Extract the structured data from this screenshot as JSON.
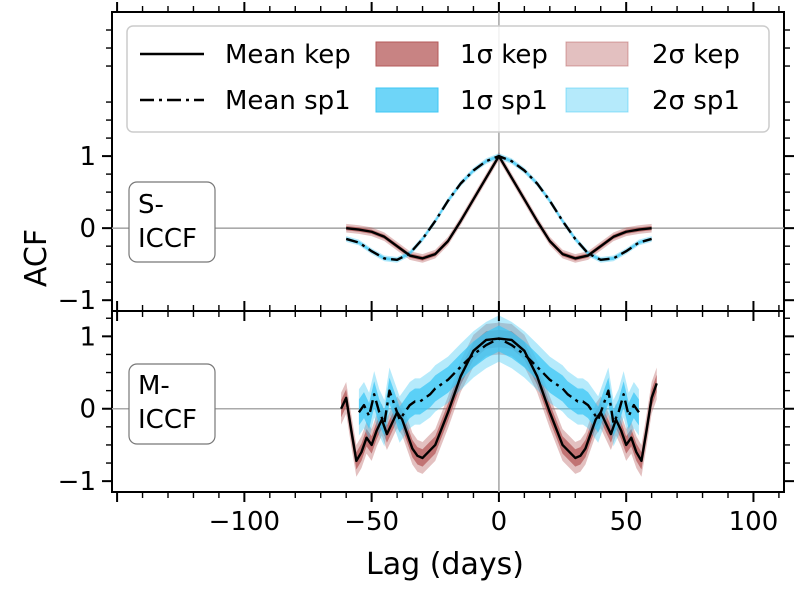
{
  "chart_data": {
    "type": "line",
    "xlabel": "Lag (days)",
    "xlim": [
      -152,
      112
    ],
    "x_ticks": [
      -100,
      -50,
      0,
      50,
      100
    ],
    "x_tick_labels": [
      "−100",
      "−50",
      "0",
      "50",
      "100"
    ],
    "y_ticks": [
      -1,
      0,
      1
    ],
    "y_tick_labels": [
      "−1",
      "0",
      "1"
    ],
    "legend": [
      {
        "label": "Mean kep",
        "kind": "line-solid"
      },
      {
        "label": "Mean sp1",
        "kind": "line-dashdot"
      },
      {
        "label": "1σ kep",
        "kind": "band",
        "color": "#b55a5a",
        "opacity": 0.75
      },
      {
        "label": "1σ sp1",
        "kind": "band",
        "color": "#3dc7f5",
        "opacity": 0.75
      },
      {
        "label": "2σ kep",
        "kind": "band",
        "color": "#b55a5a",
        "opacity": 0.38
      },
      {
        "label": "2σ sp1",
        "kind": "band",
        "color": "#3dc7f5",
        "opacity": 0.38
      }
    ],
    "panels": [
      {
        "name": "s-iccf",
        "box_lines": [
          "S-",
          "ICCF"
        ],
        "ylabel": "ACF",
        "ylim": [
          -1.15,
          3.0
        ],
        "series": [
          {
            "name": "Mean kep",
            "x": [
              -60,
              -55,
              -50,
              -45,
              -40,
              -35,
              -30,
              -25,
              -20,
              -15,
              -10,
              -5,
              0,
              5,
              10,
              15,
              20,
              25,
              30,
              35,
              40,
              45,
              50,
              55,
              60
            ],
            "y": [
              0.0,
              -0.02,
              -0.05,
              -0.12,
              -0.25,
              -0.38,
              -0.42,
              -0.36,
              -0.18,
              0.1,
              0.4,
              0.7,
              1.0,
              0.7,
              0.4,
              0.1,
              -0.18,
              -0.36,
              -0.42,
              -0.38,
              -0.25,
              -0.12,
              -0.05,
              -0.02,
              0.0
            ],
            "sigma1": 0.03,
            "sigma2": 0.06
          },
          {
            "name": "Mean sp1",
            "x": [
              -60,
              -55,
              -50,
              -45,
              -40,
              -35,
              -30,
              -25,
              -20,
              -15,
              -10,
              -5,
              0,
              5,
              10,
              15,
              20,
              25,
              30,
              35,
              40,
              45,
              50,
              55,
              60
            ],
            "y": [
              -0.15,
              -0.2,
              -0.32,
              -0.42,
              -0.44,
              -0.35,
              -0.15,
              0.1,
              0.38,
              0.62,
              0.8,
              0.93,
              1.0,
              0.93,
              0.8,
              0.62,
              0.38,
              0.1,
              -0.15,
              -0.35,
              -0.44,
              -0.42,
              -0.32,
              -0.2,
              -0.15
            ],
            "sigma1": 0.02,
            "sigma2": 0.04
          }
        ]
      },
      {
        "name": "m-iccf",
        "box_lines": [
          "M-",
          "ICCF"
        ],
        "ylabel": "",
        "ylim": [
          -1.15,
          1.35
        ],
        "series": [
          {
            "name": "Mean kep",
            "x": [
              -62,
              -60,
              -58,
              -56,
              -54,
              -52,
              -50,
              -48,
              -46,
              -44,
              -42,
              -40,
              -38,
              -36,
              -34,
              -32,
              -30,
              -25,
              -20,
              -15,
              -10,
              -5,
              0,
              5,
              10,
              15,
              20,
              25,
              30,
              32,
              34,
              36,
              38,
              40,
              42,
              44,
              46,
              48,
              50,
              52,
              54,
              56,
              58,
              60,
              62
            ],
            "y": [
              0.0,
              0.15,
              -0.3,
              -0.72,
              -0.6,
              -0.4,
              -0.5,
              -0.3,
              -0.15,
              -0.35,
              -0.2,
              -0.05,
              -0.15,
              -0.35,
              -0.55,
              -0.65,
              -0.68,
              -0.5,
              -0.05,
              0.45,
              0.8,
              0.95,
              0.97,
              0.95,
              0.8,
              0.45,
              -0.05,
              -0.5,
              -0.68,
              -0.65,
              -0.55,
              -0.35,
              -0.15,
              -0.05,
              -0.2,
              -0.35,
              -0.15,
              -0.3,
              -0.5,
              -0.4,
              -0.6,
              -0.72,
              -0.3,
              0.15,
              0.35
            ],
            "sigma1": 0.12,
            "sigma2": 0.22
          },
          {
            "name": "Mean sp1",
            "x": [
              -55,
              -53,
              -51,
              -49,
              -47,
              -45,
              -43,
              -41,
              -39,
              -37,
              -35,
              -33,
              -31,
              -29,
              -27,
              -25,
              -20,
              -15,
              -10,
              -5,
              0,
              5,
              10,
              15,
              20,
              25,
              27,
              29,
              31,
              33,
              35,
              37,
              39,
              41,
              43,
              45,
              47,
              49,
              51,
              53,
              55
            ],
            "y": [
              -0.05,
              0.05,
              -0.1,
              0.2,
              -0.05,
              -0.2,
              0.25,
              0.05,
              -0.15,
              -0.05,
              0.05,
              0.1,
              0.1,
              0.15,
              0.2,
              0.28,
              0.4,
              0.58,
              0.75,
              0.88,
              0.97,
              0.88,
              0.75,
              0.58,
              0.4,
              0.28,
              0.2,
              0.15,
              0.1,
              0.1,
              0.05,
              -0.05,
              -0.15,
              0.05,
              0.25,
              -0.2,
              -0.05,
              0.2,
              -0.1,
              0.05,
              -0.05
            ],
            "sigma1": 0.18,
            "sigma2": 0.32
          }
        ]
      }
    ]
  }
}
